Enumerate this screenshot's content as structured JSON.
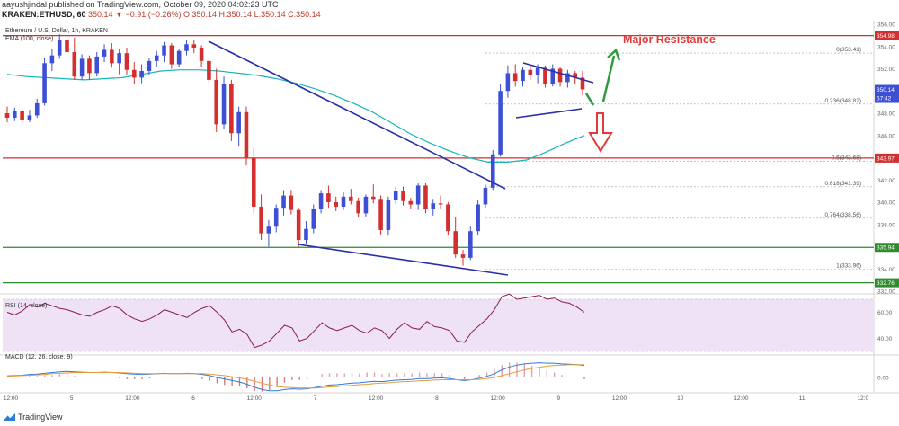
{
  "header": {
    "author_line": "aayushjindal published on TradingView.com, October 09, 2020 04:02:23 UTC",
    "ticker": "KRAKEN:ETHUSD, 60",
    "ohlc": "350.14 ▼ −0.91 (−0.26%) O:350.14 H:350.14 L:350.14 C:350.14"
  },
  "footer": {
    "brand": "TradingView"
  },
  "colors": {
    "up": "#3d4fd3",
    "down": "#d32f2f",
    "ema": "#19b5b5",
    "resistance": "#d32f2f",
    "support": "#2e8b2e",
    "trendline": "#2a2fa6",
    "annotation": "#e03b3b",
    "arrow_up": "#2e9b3a",
    "arrow_down": "#e03b3b",
    "rsi_line": "#8a1a5a",
    "rsi_band": "#efe2f5",
    "macd_line": "#2e7dd8",
    "signal_line": "#e39c3c",
    "hist_up": "#e0a0b0",
    "hist_down": "#e57373"
  },
  "chart_data": [
    {
      "type": "candlestick",
      "title": "Ethereum / U.S. Dollar, 1h, KRAKEN",
      "indicator_label": "EMA (100, close)",
      "ylim": [
        332,
        356
      ],
      "yticks": [
        332,
        334,
        336,
        338,
        340,
        342,
        344,
        346,
        348,
        350,
        352,
        354,
        356
      ],
      "xticks": [
        "12:00",
        "5",
        "12:00",
        "6",
        "12:00",
        "7",
        "12:00",
        "8",
        "12:00",
        "9",
        "12:00",
        "10",
        "12:00",
        "11",
        "12:0"
      ],
      "candles_ohlc": [
        [
          348.0,
          348.6,
          347.2,
          347.6
        ],
        [
          347.6,
          348.5,
          347.3,
          348.2
        ],
        [
          348.2,
          348.5,
          347.0,
          347.4
        ],
        [
          347.4,
          348.3,
          347.2,
          347.8
        ],
        [
          347.8,
          349.3,
          347.6,
          348.9
        ],
        [
          348.9,
          353.0,
          348.7,
          352.5
        ],
        [
          352.5,
          353.8,
          351.8,
          353.2
        ],
        [
          353.2,
          355.1,
          352.9,
          354.6
        ],
        [
          354.6,
          355.2,
          353.2,
          353.5
        ],
        [
          353.5,
          354.8,
          351.0,
          351.3
        ],
        [
          351.3,
          353.3,
          351.0,
          352.9
        ],
        [
          352.9,
          353.2,
          351.0,
          351.6
        ],
        [
          351.6,
          353.5,
          351.3,
          353.1
        ],
        [
          353.1,
          354.2,
          352.6,
          353.7
        ],
        [
          353.7,
          354.3,
          352.1,
          352.5
        ],
        [
          352.5,
          353.8,
          351.5,
          353.4
        ],
        [
          353.4,
          353.9,
          351.4,
          351.9
        ],
        [
          351.9,
          352.6,
          350.6,
          351.2
        ],
        [
          351.2,
          352.4,
          350.7,
          351.8
        ],
        [
          351.8,
          353.0,
          351.4,
          352.7
        ],
        [
          352.7,
          353.6,
          352.2,
          353.2
        ],
        [
          353.2,
          354.4,
          352.6,
          354.1
        ],
        [
          354.1,
          354.3,
          352.0,
          352.4
        ],
        [
          352.4,
          353.8,
          352.2,
          353.6
        ],
        [
          353.6,
          354.6,
          353.2,
          354.2
        ],
        [
          354.2,
          354.6,
          353.4,
          353.9
        ],
        [
          353.9,
          354.1,
          352.2,
          352.7
        ],
        [
          352.7,
          353.0,
          350.5,
          351.0
        ],
        [
          351.0,
          352.0,
          346.3,
          347.0
        ],
        [
          347.0,
          351.3,
          346.6,
          350.6
        ],
        [
          350.6,
          351.0,
          345.5,
          346.2
        ],
        [
          346.2,
          348.6,
          345.0,
          348.1
        ],
        [
          348.1,
          348.6,
          343.3,
          344.0
        ],
        [
          344.0,
          344.9,
          339.0,
          339.6
        ],
        [
          339.6,
          340.7,
          336.6,
          337.2
        ],
        [
          337.2,
          338.4,
          336.0,
          337.8
        ],
        [
          337.8,
          339.8,
          337.3,
          339.5
        ],
        [
          339.5,
          341.1,
          338.8,
          340.6
        ],
        [
          340.6,
          341.1,
          338.9,
          339.3
        ],
        [
          339.3,
          339.5,
          336.0,
          336.6
        ],
        [
          336.6,
          338.3,
          336.2,
          337.6
        ],
        [
          337.6,
          339.8,
          337.2,
          339.4
        ],
        [
          339.4,
          341.1,
          339.0,
          340.8
        ],
        [
          340.8,
          341.5,
          339.5,
          340.0
        ],
        [
          340.0,
          340.5,
          339.2,
          339.6
        ],
        [
          339.6,
          340.9,
          339.3,
          340.5
        ],
        [
          340.5,
          341.2,
          339.8,
          340.1
        ],
        [
          340.1,
          340.4,
          338.7,
          339.0
        ],
        [
          339.0,
          340.7,
          338.7,
          340.5
        ],
        [
          340.5,
          341.6,
          339.9,
          340.3
        ],
        [
          340.3,
          340.6,
          337.1,
          337.5
        ],
        [
          337.5,
          340.5,
          337.0,
          340.2
        ],
        [
          340.2,
          341.4,
          339.8,
          341.0
        ],
        [
          341.0,
          341.4,
          339.7,
          340.1
        ],
        [
          340.1,
          340.4,
          339.4,
          339.8
        ],
        [
          339.8,
          341.7,
          339.3,
          341.5
        ],
        [
          341.5,
          341.7,
          339.0,
          339.4
        ],
        [
          339.4,
          340.3,
          338.8,
          339.9
        ],
        [
          339.9,
          340.6,
          339.4,
          339.8
        ],
        [
          339.8,
          340.0,
          337.0,
          337.4
        ],
        [
          337.4,
          338.7,
          335.0,
          335.3
        ],
        [
          335.3,
          335.7,
          334.3,
          335.0
        ],
        [
          335.0,
          337.8,
          334.8,
          337.4
        ],
        [
          337.4,
          340.2,
          337.0,
          339.8
        ],
        [
          339.8,
          341.6,
          339.5,
          341.3
        ],
        [
          341.3,
          344.7,
          341.1,
          344.3
        ],
        [
          344.3,
          350.6,
          344.1,
          350.0
        ],
        [
          350.0,
          352.3,
          349.4,
          351.6
        ],
        [
          351.6,
          352.4,
          350.4,
          350.9
        ],
        [
          350.9,
          352.2,
          350.4,
          351.9
        ],
        [
          351.9,
          352.3,
          351.0,
          351.4
        ],
        [
          351.4,
          352.4,
          350.7,
          352.1
        ],
        [
          352.1,
          352.3,
          350.3,
          350.6
        ],
        [
          350.6,
          352.4,
          350.4,
          352.0
        ],
        [
          352.0,
          352.2,
          350.4,
          350.8
        ],
        [
          350.8,
          351.9,
          350.3,
          351.6
        ],
        [
          351.6,
          351.8,
          350.6,
          351.2
        ],
        [
          351.2,
          351.8,
          349.6,
          350.14
        ]
      ],
      "ema": [
        351.5,
        351.3,
        351.2,
        351.1,
        351.0,
        351.1,
        351.2,
        351.5,
        351.8,
        351.9,
        351.9,
        351.8,
        351.6,
        351.4,
        351.1,
        350.7,
        350.2,
        349.6,
        348.9,
        348.1,
        347.1,
        346.1,
        345.3,
        344.6,
        344.0,
        343.6,
        343.6,
        343.8,
        344.5,
        345.3,
        346.0
      ],
      "ema_x_fraction_samples": "spans chart width",
      "levels": [
        {
          "value": 354.98,
          "label": "354.98",
          "color": "#d32f2f"
        },
        {
          "value": 343.97,
          "label": "343.97",
          "color": "#d32f2f"
        },
        {
          "value": 335.94,
          "label": "335.94",
          "color": "#2e8b2e"
        },
        {
          "value": 332.76,
          "label": "332.76",
          "color": "#2e8b2e"
        }
      ],
      "last_price": {
        "value": 350.14,
        "label": "350.14",
        "countdown": "57:42"
      },
      "fibonacci": [
        {
          "value": 353.41,
          "label": "0(353.41)"
        },
        {
          "value": 348.82,
          "label": "0.236(348.82)"
        },
        {
          "value": 343.68,
          "label": "0.5(343.68)"
        },
        {
          "value": 341.39,
          "label": "0.618(341.39)"
        },
        {
          "value": 338.56,
          "label": "0.764(338.56)"
        },
        {
          "value": 333.96,
          "label": "1(333.96)"
        }
      ],
      "annotation": "Major Resistance"
    },
    {
      "type": "line",
      "title": "RSI (14, close)",
      "ylim": [
        30,
        70
      ],
      "yticks": [
        40.0,
        60.0
      ],
      "band": [
        30,
        70
      ],
      "values": [
        60,
        58,
        61,
        66,
        64,
        67,
        65,
        63,
        62,
        60,
        58,
        57,
        60,
        62,
        65,
        63,
        58,
        55,
        53,
        55,
        58,
        62,
        60,
        58,
        56,
        60,
        63,
        65,
        60,
        54,
        45,
        47,
        43,
        33,
        35,
        38,
        44,
        50,
        48,
        38,
        40,
        46,
        52,
        48,
        46,
        48,
        50,
        46,
        44,
        48,
        46,
        40,
        47,
        52,
        48,
        47,
        53,
        49,
        48,
        46,
        38,
        37,
        45,
        50,
        55,
        62,
        72,
        74,
        70,
        71,
        72,
        73,
        70,
        71,
        68,
        67,
        64,
        60
      ]
    },
    {
      "type": "line",
      "title": "MACD (12, 26, close, 9)",
      "yticks": [
        0.0
      ],
      "macd": [
        0.4,
        0.5,
        0.6,
        0.8,
        0.9,
        1.1,
        1.3,
        1.5,
        1.6,
        1.5,
        1.4,
        1.3,
        1.3,
        1.4,
        1.3,
        1.2,
        1.0,
        0.9,
        0.8,
        0.9,
        1.0,
        1.1,
        1.0,
        1.0,
        1.1,
        1.0,
        0.8,
        0.5,
        0.0,
        -0.4,
        -0.8,
        -1.2,
        -1.8,
        -2.6,
        -3.2,
        -3.5,
        -3.5,
        -3.2,
        -3.0,
        -3.1,
        -3.0,
        -2.7,
        -2.3,
        -2.0,
        -1.9,
        -1.7,
        -1.5,
        -1.4,
        -1.2,
        -1.0,
        -1.1,
        -0.9,
        -0.7,
        -0.6,
        -0.5,
        -0.3,
        -0.3,
        -0.2,
        -0.1,
        -0.3,
        -0.6,
        -0.8,
        -0.6,
        -0.2,
        0.3,
        1.0,
        2.0,
        2.8,
        3.3,
        3.6,
        3.8,
        3.9,
        3.8,
        3.8,
        3.6,
        3.5,
        3.4,
        3.2
      ],
      "signal": [
        0.3,
        0.4,
        0.5,
        0.6,
        0.7,
        0.8,
        1.0,
        1.1,
        1.2,
        1.3,
        1.3,
        1.3,
        1.3,
        1.3,
        1.3,
        1.3,
        1.2,
        1.1,
        1.0,
        1.0,
        1.0,
        1.0,
        1.0,
        1.0,
        1.0,
        1.0,
        1.0,
        0.9,
        0.7,
        0.5,
        0.2,
        -0.1,
        -0.5,
        -1.0,
        -1.5,
        -2.0,
        -2.4,
        -2.6,
        -2.7,
        -2.8,
        -2.8,
        -2.8,
        -2.7,
        -2.5,
        -2.4,
        -2.2,
        -2.1,
        -1.9,
        -1.8,
        -1.6,
        -1.5,
        -1.4,
        -1.2,
        -1.1,
        -1.0,
        -0.9,
        -0.8,
        -0.7,
        -0.6,
        -0.6,
        -0.6,
        -0.6,
        -0.6,
        -0.5,
        -0.3,
        0.0,
        0.5,
        1.0,
        1.5,
        2.0,
        2.4,
        2.7,
        3.0,
        3.2,
        3.3,
        3.4,
        3.4,
        3.4
      ]
    }
  ]
}
